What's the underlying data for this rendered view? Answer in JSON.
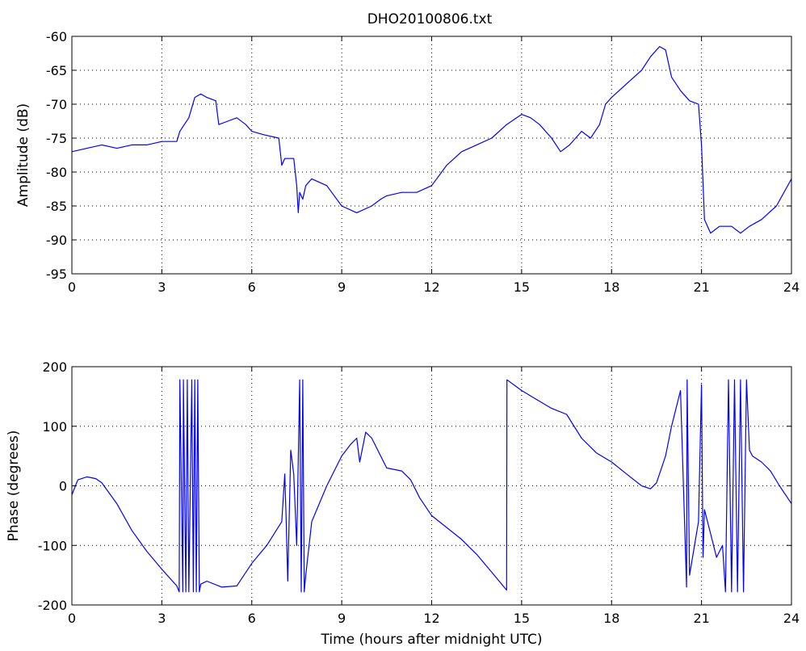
{
  "title": "DHO20100806.txt",
  "colors": {
    "series": "#0000ff",
    "axes": "#000000",
    "background": "#ffffff"
  },
  "chart_data": [
    {
      "type": "line",
      "title": "DHO20100806.txt",
      "xlabel": "",
      "ylabel": "Amplitude (dB)",
      "xlim": [
        0,
        24
      ],
      "ylim": [
        -95,
        -60
      ],
      "xticks": [
        0,
        3,
        6,
        9,
        12,
        15,
        18,
        21,
        24
      ],
      "yticks": [
        -95,
        -90,
        -85,
        -80,
        -75,
        -70,
        -65,
        -60
      ],
      "grid": true,
      "series": [
        {
          "x": [
            0,
            0.5,
            1,
            1.5,
            2,
            2.5,
            3,
            3.5,
            3.6,
            3.9,
            4.1,
            4.3,
            4.5,
            4.8,
            4.9,
            5.2,
            5.5,
            5.8,
            6.0,
            6.4,
            6.9,
            7.0,
            7.1,
            7.4,
            7.5,
            7.55,
            7.6,
            7.7,
            7.8,
            8.0,
            8.5,
            9.0,
            9.5,
            10.0,
            10.3,
            10.5,
            11.0,
            11.5,
            12.0,
            12.5,
            13.0,
            13.5,
            14.0,
            14.5,
            15.0,
            15.3,
            15.6,
            16.0,
            16.3,
            16.6,
            16.8,
            17.0,
            17.3,
            17.6,
            17.8,
            18.0,
            18.5,
            19.0,
            19.3,
            19.6,
            19.8,
            20.0,
            20.3,
            20.6,
            20.9,
            21.0,
            21.1,
            21.3,
            21.6,
            22.0,
            22.3,
            22.6,
            23.0,
            23.5,
            24.0
          ],
          "y": [
            -77,
            -76.5,
            -76,
            -76.5,
            -76,
            -76,
            -75.5,
            -75.5,
            -74,
            -72,
            -69,
            -68.5,
            -69,
            -69.5,
            -73,
            -72.5,
            -72,
            -73,
            -74,
            -74.5,
            -75,
            -79,
            -78,
            -78,
            -82,
            -86,
            -83,
            -84,
            -82,
            -81,
            -82,
            -85,
            -86,
            -85,
            -84,
            -83.5,
            -83,
            -83,
            -82,
            -79,
            -77,
            -76,
            -75,
            -73,
            -71.5,
            -72,
            -73,
            -75,
            -77,
            -76,
            -75,
            -74,
            -75,
            -73,
            -70,
            -69,
            -67,
            -65,
            -63,
            -61.5,
            -62,
            -66,
            -68,
            -69.5,
            -70,
            -76,
            -87,
            -89,
            -88,
            -88,
            -89,
            -88,
            -87,
            -85,
            -81
          ]
        }
      ]
    },
    {
      "type": "line",
      "title": "",
      "xlabel": "Time (hours after midnight UTC)",
      "ylabel": "Phase (degrees)",
      "xlim": [
        0,
        24
      ],
      "ylim": [
        -200,
        200
      ],
      "xticks": [
        0,
        3,
        6,
        9,
        12,
        15,
        18,
        21,
        24
      ],
      "yticks": [
        -200,
        -100,
        0,
        100,
        200
      ],
      "grid": true,
      "series": [
        {
          "x": [
            0,
            0.2,
            0.5,
            0.8,
            1.0,
            1.5,
            2.0,
            2.5,
            3.0,
            3.5,
            3.58,
            3.6,
            3.7,
            3.72,
            3.8,
            3.85,
            3.9,
            4.0,
            4.05,
            4.1,
            4.15,
            4.2,
            4.25,
            4.3,
            4.5,
            5.0,
            5.5,
            6.0,
            6.5,
            7.0,
            7.1,
            7.15,
            7.2,
            7.3,
            7.4,
            7.5,
            7.6,
            7.65,
            7.7,
            7.75,
            7.8,
            8.0,
            8.5,
            9.0,
            9.3,
            9.5,
            9.6,
            9.8,
            10.0,
            10.3,
            10.5,
            11.0,
            11.3,
            11.6,
            12.0,
            12.5,
            13.0,
            13.5,
            14.0,
            14.5,
            14.51,
            15.0,
            15.5,
            16.0,
            16.5,
            17.0,
            17.5,
            18.0,
            18.5,
            19.0,
            19.3,
            19.5,
            19.8,
            20.0,
            20.3,
            20.5,
            20.52,
            20.6,
            20.7,
            20.8,
            20.9,
            21.0,
            21.05,
            21.1,
            21.3,
            21.5,
            21.7,
            21.8,
            21.9,
            22.0,
            22.1,
            22.2,
            22.3,
            22.4,
            22.5,
            22.6,
            22.7,
            23.0,
            23.3,
            23.6,
            24.0
          ],
          "y": [
            -15,
            10,
            15,
            12,
            5,
            -30,
            -75,
            -110,
            -140,
            -168,
            -178,
            178,
            -178,
            178,
            -178,
            178,
            -178,
            178,
            -178,
            178,
            -178,
            178,
            -178,
            -165,
            -160,
            -170,
            -168,
            -130,
            -100,
            -60,
            20,
            -60,
            -160,
            60,
            20,
            -100,
            178,
            -178,
            178,
            -178,
            -150,
            -60,
            0,
            50,
            70,
            80,
            40,
            90,
            80,
            50,
            30,
            25,
            10,
            -20,
            -50,
            -70,
            -90,
            -115,
            -145,
            -175,
            178,
            160,
            145,
            130,
            120,
            80,
            55,
            40,
            20,
            0,
            -5,
            5,
            50,
            100,
            160,
            -170,
            178,
            -150,
            -120,
            -90,
            -60,
            170,
            -120,
            -40,
            -80,
            -120,
            -100,
            -178,
            178,
            -178,
            178,
            -178,
            178,
            -178,
            178,
            60,
            50,
            40,
            25,
            0,
            -30
          ]
        }
      ]
    }
  ]
}
